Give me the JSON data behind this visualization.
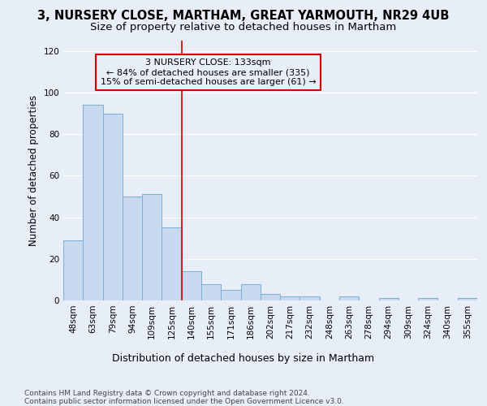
{
  "title": "3, NURSERY CLOSE, MARTHAM, GREAT YARMOUTH, NR29 4UB",
  "subtitle": "Size of property relative to detached houses in Martham",
  "xlabel_bottom": "Distribution of detached houses by size in Martham",
  "ylabel": "Number of detached properties",
  "categories": [
    "48sqm",
    "63sqm",
    "79sqm",
    "94sqm",
    "109sqm",
    "125sqm",
    "140sqm",
    "155sqm",
    "171sqm",
    "186sqm",
    "202sqm",
    "217sqm",
    "232sqm",
    "248sqm",
    "263sqm",
    "278sqm",
    "294sqm",
    "309sqm",
    "324sqm",
    "340sqm",
    "355sqm"
  ],
  "values": [
    29,
    94,
    90,
    50,
    51,
    35,
    14,
    8,
    5,
    8,
    3,
    2,
    2,
    0,
    2,
    0,
    1,
    0,
    1,
    0,
    1
  ],
  "bar_color": "#c8d8ee",
  "bar_edge_color": "#7aaed4",
  "vline_x": 5.5,
  "vline_color": "#cc0000",
  "annotation_line1": "3 NURSERY CLOSE: 133sqm",
  "annotation_line2": "← 84% of detached houses are smaller (335)",
  "annotation_line3": "15% of semi-detached houses are larger (61) →",
  "annotation_box_color": "#cc0000",
  "ylim": [
    0,
    125
  ],
  "yticks": [
    0,
    20,
    40,
    60,
    80,
    100,
    120
  ],
  "background_color": "#e8eef8",
  "grid_color": "#ffffff",
  "footer": "Contains HM Land Registry data © Crown copyright and database right 2024.\nContains public sector information licensed under the Open Government Licence v3.0.",
  "title_fontsize": 10.5,
  "subtitle_fontsize": 9.5,
  "ylabel_fontsize": 8.5,
  "tick_fontsize": 7.5,
  "annotation_fontsize": 8,
  "xlabel_fontsize": 9,
  "footer_fontsize": 6.5
}
